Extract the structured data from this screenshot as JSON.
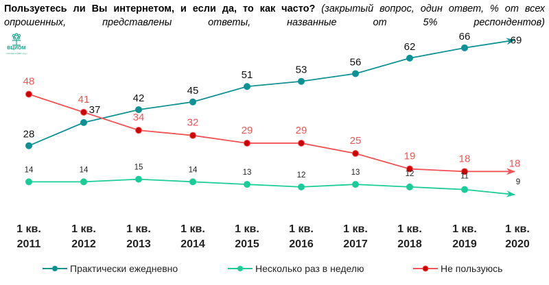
{
  "title": {
    "question": "Пользуетесь ли Вы интернетом, и если да, то как часто?",
    "note": "(закрытый вопрос, один ответ, % от всех опрошенных, представлены ответы, названные от 5% респондентов)"
  },
  "logo": {
    "name": "ВЦИОМ",
    "subtitle": "• Основан в 1987 году •"
  },
  "colors": {
    "daily": "#0e9195",
    "weekly": "#1ccc98",
    "none_line": "#f25252",
    "none_marker": "#cc0000",
    "none_label": "#f25252"
  },
  "chart_data": {
    "type": "line",
    "title": "Пользуетесь ли Вы интернетом, и если да, то как часто?",
    "xlabel": "",
    "ylabel": "% от всех опрошенных",
    "ylim": [
      0,
      75
    ],
    "grid": false,
    "legend_position": "bottom",
    "categories": [
      "1 кв. 2011",
      "1 кв. 2012",
      "1 кв. 2013",
      "1 кв. 2014",
      "1 кв. 2015",
      "1 кв. 2016",
      "1 кв. 2017",
      "1 кв. 2018",
      "1 кв. 2019",
      "1 кв. 2020"
    ],
    "category_lines": [
      [
        "1 кв.",
        "2011"
      ],
      [
        "1 кв.",
        "2012"
      ],
      [
        "1 кв.",
        "2013"
      ],
      [
        "1 кв.",
        "2014"
      ],
      [
        "1 кв.",
        "2015"
      ],
      [
        "1 кв.",
        "2016"
      ],
      [
        "1 кв.",
        "2017"
      ],
      [
        "1 кв.",
        "2018"
      ],
      [
        "1 кв.",
        "2019"
      ],
      [
        "1 кв.",
        "2020"
      ]
    ],
    "series": [
      {
        "key": "daily",
        "name": "Практически ежедневно",
        "values": [
          28,
          37,
          42,
          45,
          51,
          53,
          56,
          62,
          66,
          69
        ]
      },
      {
        "key": "weekly",
        "name": "Несколько раз в неделю",
        "values": [
          14,
          14,
          15,
          14,
          13,
          12,
          13,
          12,
          11,
          9
        ]
      },
      {
        "key": "none",
        "name": "Не пользуюсь",
        "values": [
          48,
          41,
          34,
          32,
          29,
          29,
          25,
          19,
          18,
          18
        ]
      }
    ]
  },
  "legend": [
    {
      "key": "daily",
      "label": "Практически ежедневно"
    },
    {
      "key": "weekly",
      "label": "Несколько раз в неделю"
    },
    {
      "key": "none",
      "label": "Не пользуюсь"
    }
  ]
}
